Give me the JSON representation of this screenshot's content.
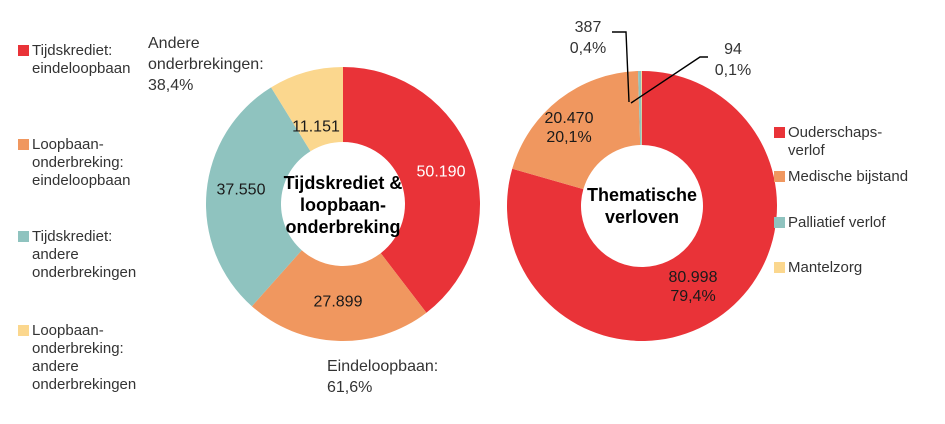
{
  "colors": {
    "red": "#E93338",
    "orange": "#F0975F",
    "teal": "#8FC3BF",
    "cream": "#FBD78E",
    "label_text": "#333333",
    "value_text_on_red": "#FFFFFF",
    "leader_line": "#000000"
  },
  "chart_data": [
    {
      "type": "pie",
      "subtype": "donut",
      "center_title": "Tijdskrediet &\nloopbaan-\nonderbreking",
      "categories": [
        "Tijdskrediet: eindeloopbaan",
        "Loopbaan-onderbreking: eindeloopbaan",
        "Tijdskrediet: andere onderbrekingen",
        "Loopbaan-onderbreking: andere onderbrekingen"
      ],
      "values": [
        50190,
        27899,
        37550,
        11151
      ],
      "percentages": [
        39.6,
        22.0,
        29.6,
        8.8
      ],
      "value_labels": [
        "50.190",
        "27.899",
        "37.550",
        "11.151"
      ],
      "colors": [
        "#E93338",
        "#F0975F",
        "#8FC3BF",
        "#FBD78E"
      ],
      "start_angle_deg": 0,
      "direction": "clockwise",
      "annotations": [
        "Andere\nonderbrekingen:\n38,4%",
        "Eindeloopbaan:\n61,6%"
      ],
      "legend": [
        "Tijdskrediet:\neindeloopbaan",
        "Loopbaan-\nonderbreking:\neindeloopbaan",
        "Tijdskrediet:\nandere\nonderbrekingen",
        "Loopbaan-\nonderbreking:\nandere\nonderbrekingen"
      ],
      "legend_position": "left"
    },
    {
      "type": "pie",
      "subtype": "donut",
      "center_title": "Thematische\nverloven",
      "categories": [
        "Ouderschapsverlof",
        "Medische bijstand",
        "Palliatief verlof",
        "Mantelzorg"
      ],
      "values": [
        80998,
        20470,
        387,
        94
      ],
      "percentages": [
        79.4,
        20.1,
        0.4,
        0.1
      ],
      "value_labels": [
        "80.998\n79,4%",
        "20.470\n20,1%",
        "387\n0,4%",
        "94\n0,1%"
      ],
      "colors": [
        "#E93338",
        "#F0975F",
        "#8FC3BF",
        "#FBD78E"
      ],
      "start_angle_deg": 0,
      "direction": "clockwise",
      "legend": [
        "Ouderschaps-\nverlof",
        "Medische bijstand",
        "Palliatief verlof",
        "Mantelzorg"
      ],
      "legend_position": "right"
    }
  ]
}
